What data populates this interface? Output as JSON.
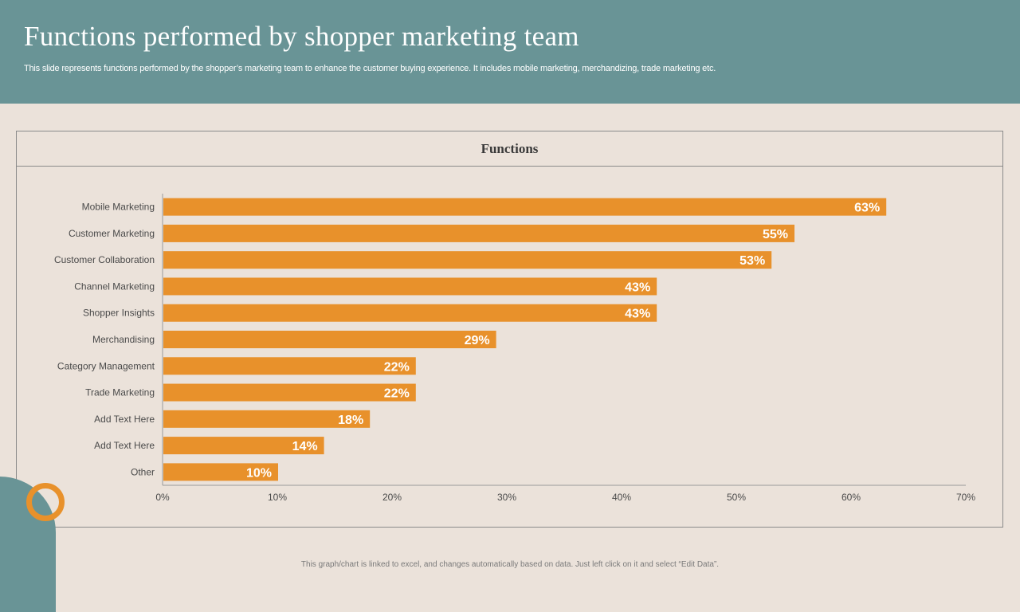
{
  "header": {
    "title": "Functions performed by shopper marketing team",
    "subtitle": "This slide represents functions performed by the shopper’s marketing team to enhance the customer buying experience. It includes mobile marketing, merchandizing, trade marketing etc."
  },
  "colors": {
    "header_bg": "#699496",
    "page_bg": "#ebe2da",
    "bar": "#e8912b",
    "accent_ring": "#e8912b"
  },
  "chart_data": {
    "type": "bar",
    "orientation": "horizontal",
    "title": "Functions",
    "categories": [
      "Mobile Marketing",
      "Customer Marketing",
      "Customer Collaboration",
      "Channel Marketing",
      "Shopper Insights",
      "Merchandising",
      "Category Management",
      "Trade Marketing",
      "Add Text Here",
      "Add Text Here",
      "Other"
    ],
    "values": [
      63,
      55,
      53,
      43,
      43,
      29,
      22,
      22,
      18,
      14,
      10
    ],
    "value_labels": [
      "63%",
      "55%",
      "53%",
      "43%",
      "43%",
      "29%",
      "22%",
      "22%",
      "18%",
      "14%",
      "10%"
    ],
    "xlim": [
      0,
      70
    ],
    "xticks": [
      0,
      10,
      20,
      30,
      40,
      50,
      60,
      70
    ],
    "xtick_labels": [
      "0%",
      "10%",
      "20%",
      "30%",
      "40%",
      "50%",
      "60%",
      "70%"
    ],
    "xlabel": "",
    "ylabel": "",
    "grid": false,
    "legend": "none"
  },
  "footnote": "This graph/chart is linked to excel, and changes automatically based on data. Just left click on it and select “Edit Data”."
}
